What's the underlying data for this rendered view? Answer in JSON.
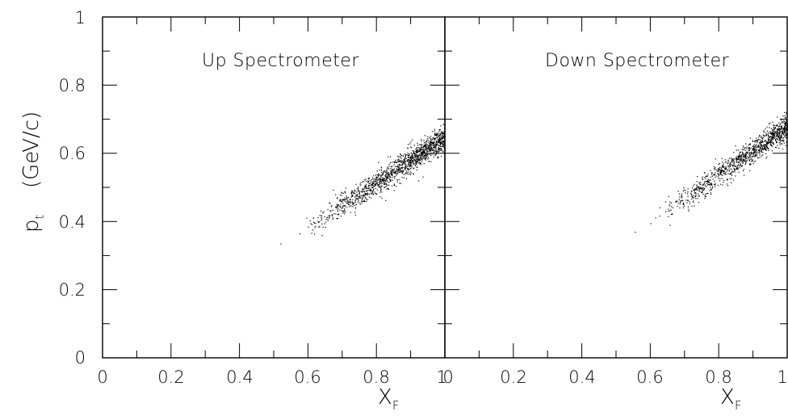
{
  "chart_data": [
    {
      "type": "scatter",
      "title": "Up Spectrometer",
      "xlabel": "X",
      "xlabel_subscript": "F",
      "ylabel": "p",
      "ylabel_subscript": "t",
      "ylabel_unit": "(GeV/c)",
      "xlim": [
        0,
        1
      ],
      "ylim": [
        0,
        1
      ],
      "x_ticks": [
        "0",
        "0.2",
        "0.4",
        "0.6",
        "0.8",
        "1"
      ],
      "y_ticks": [
        "0",
        "0.2",
        "0.4",
        "0.6",
        "0.8",
        "1"
      ],
      "grid": false,
      "point_color": "#000000",
      "point_clouds": [
        {
          "x_from": 0.58,
          "x_to": 1.0,
          "y_at_start": 0.37,
          "slope": 0.66,
          "spread": 0.018,
          "count": 1400
        }
      ],
      "points": [
        [
          0.52,
          0.335
        ],
        [
          0.575,
          0.365
        ],
        [
          0.6,
          0.385
        ]
      ]
    },
    {
      "type": "scatter",
      "title": "Down Spectrometer",
      "xlabel": "X",
      "xlabel_subscript": "F",
      "xlim": [
        0,
        1
      ],
      "ylim": [
        0,
        1
      ],
      "x_ticks": [
        "0",
        "0.2",
        "0.4",
        "0.6",
        "0.8",
        "1"
      ],
      "grid": false,
      "point_color": "#000000",
      "point_clouds": [
        {
          "x_from": 0.61,
          "x_to": 1.0,
          "y_at_start": 0.405,
          "slope": 0.7,
          "spread": 0.018,
          "count": 1100
        }
      ],
      "points": [
        [
          0.555,
          0.37
        ],
        [
          0.6,
          0.395
        ]
      ]
    }
  ]
}
